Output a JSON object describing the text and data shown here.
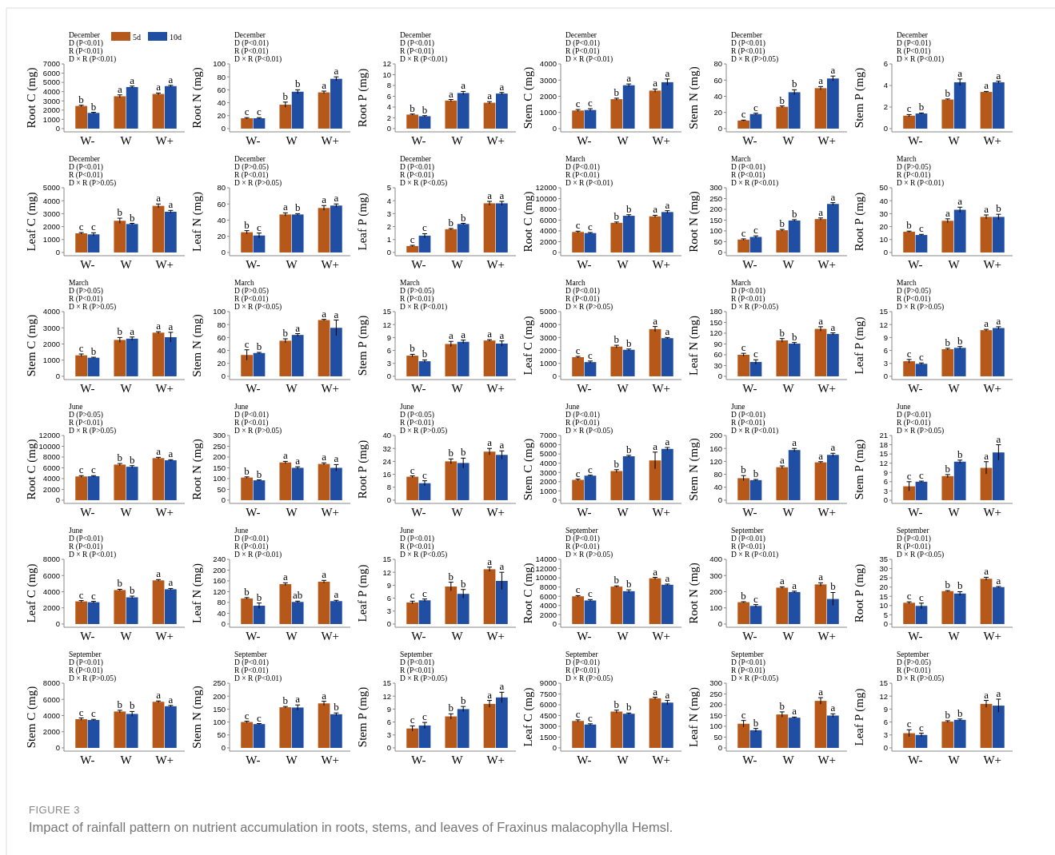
{
  "chart_data": [
    {
      "type": "bar",
      "ylabel": "Root C (mg)",
      "categories": [
        "W-",
        "W",
        "W+"
      ],
      "ylim": [
        -350,
        7000
      ],
      "yticks": [
        0,
        1000,
        2000,
        3000,
        4000,
        5000,
        6000,
        7000
      ],
      "legend": "top",
      "annotations": [
        "December",
        "D (P<0.01)",
        "R (P<0.01)",
        "D × R (P<0.01)"
      ],
      "series": [
        {
          "name": "5d",
          "color": "#b5581a",
          "values": [
            2450,
            3500,
            3750
          ],
          "errors": [
            80,
            150,
            100
          ],
          "value_labels": [
            "b",
            "a",
            "a"
          ]
        },
        {
          "name": "10d",
          "color": "#1f4ea3",
          "values": [
            1700,
            4500,
            4600
          ],
          "errors": [
            60,
            100,
            80
          ],
          "value_labels": [
            "b",
            "a",
            "a"
          ]
        }
      ]
    },
    {
      "type": "bar",
      "ylabel": "Root N (mg)",
      "categories": [
        "W-",
        "W",
        "W+"
      ],
      "ylim": [
        -5,
        100
      ],
      "yticks": [
        0,
        20,
        40,
        60,
        80,
        100
      ],
      "annotations": [
        "December",
        "D (P<0.01)",
        "R (P<0.01)",
        "D × R (P<0.01)"
      ],
      "series": [
        {
          "color": "#b5581a",
          "values": [
            16,
            37,
            56
          ],
          "errors": [
            1,
            4,
            2
          ],
          "value_labels": [
            "c",
            "b",
            "a"
          ]
        },
        {
          "color": "#1f4ea3",
          "values": [
            16,
            57,
            77
          ],
          "errors": [
            1,
            3,
            3
          ],
          "value_labels": [
            "c",
            "b",
            "a"
          ]
        }
      ]
    },
    {
      "type": "bar",
      "ylabel": "Root P (mg)",
      "categories": [
        "W-",
        "W",
        "W+"
      ],
      "ylim": [
        -0.6,
        12
      ],
      "yticks": [
        0,
        2,
        4,
        6,
        8,
        10,
        12
      ],
      "annotations": [
        "December",
        "D (P<0.01)",
        "R (P<0.01)",
        "D × R (P<0.01)"
      ],
      "series": [
        {
          "color": "#b5581a",
          "values": [
            2.6,
            5.2,
            4.8
          ],
          "errors": [
            0.1,
            0.2,
            0.2
          ],
          "value_labels": [
            "b",
            "a",
            "a"
          ]
        },
        {
          "color": "#1f4ea3",
          "values": [
            2.3,
            6.6,
            6.5
          ],
          "errors": [
            0.1,
            0.3,
            0.2
          ],
          "value_labels": [
            "b",
            "a",
            "a"
          ]
        }
      ]
    },
    {
      "type": "bar",
      "ylabel": "Stem C (mg)",
      "categories": [
        "W-",
        "W",
        "W+"
      ],
      "ylim": [
        -200,
        4000
      ],
      "yticks": [
        0,
        1000,
        2000,
        3000,
        4000
      ],
      "annotations": [
        "December",
        "D (P<0.01)",
        "R (P<0.01)",
        "D × R (P<0.01)"
      ],
      "series": [
        {
          "color": "#b5581a",
          "values": [
            1120,
            1820,
            2350
          ],
          "errors": [
            60,
            60,
            100
          ],
          "value_labels": [
            "c",
            "b",
            "a"
          ]
        },
        {
          "color": "#1f4ea3",
          "values": [
            1150,
            2680,
            2870
          ],
          "errors": [
            80,
            80,
            200
          ],
          "value_labels": [
            "c",
            "a",
            "a"
          ]
        }
      ]
    },
    {
      "type": "bar",
      "ylabel": "Stem N (mg)",
      "categories": [
        "W-",
        "W",
        "W+"
      ],
      "ylim": [
        -4,
        80
      ],
      "yticks": [
        0,
        20,
        40,
        60,
        80
      ],
      "annotations": [
        "December",
        "D (P<0.01)",
        "R (P<0.01)",
        "D × R (P>0.05)"
      ],
      "series": [
        {
          "color": "#b5581a",
          "values": [
            10,
            27,
            50
          ],
          "errors": [
            0.5,
            1,
            2
          ],
          "value_labels": [
            "c",
            "b",
            "a"
          ]
        },
        {
          "color": "#1f4ea3",
          "values": [
            18,
            45,
            62
          ],
          "errors": [
            1,
            3,
            3
          ],
          "value_labels": [
            "c",
            "b",
            "a"
          ]
        }
      ]
    },
    {
      "type": "bar",
      "ylabel": "Stem P (mg)",
      "categories": [
        "W-",
        "W",
        "W+"
      ],
      "ylim": [
        -0.3,
        6
      ],
      "yticks": [
        0,
        2,
        4,
        6
      ],
      "annotations": [
        "December",
        "D (P<0.01)",
        "R (P<0.01)",
        "D × R (P<0.01)"
      ],
      "series": [
        {
          "color": "#b5581a",
          "values": [
            1.2,
            2.7,
            3.4
          ],
          "errors": [
            0.1,
            0.05,
            0.05
          ],
          "value_labels": [
            "c",
            "b",
            "a"
          ]
        },
        {
          "color": "#1f4ea3",
          "values": [
            1.4,
            4.3,
            4.3
          ],
          "errors": [
            0.05,
            0.3,
            0.1
          ],
          "value_labels": [
            "b",
            "a",
            "a"
          ]
        }
      ]
    },
    {
      "type": "bar",
      "ylabel": "Leaf C (mg)",
      "categories": [
        "W-",
        "W",
        "W+"
      ],
      "ylim": [
        -250,
        5000
      ],
      "yticks": [
        0,
        1000,
        2000,
        3000,
        4000,
        5000
      ],
      "annotations": [
        "December",
        "D (P<0.01)",
        "R (P<0.01)",
        "D × R (P>0.05)"
      ],
      "series": [
        {
          "color": "#b5581a",
          "values": [
            1480,
            2450,
            3600
          ],
          "errors": [
            60,
            200,
            150
          ],
          "value_labels": [
            "c",
            "b",
            "a"
          ]
        },
        {
          "color": "#1f4ea3",
          "values": [
            1400,
            2200,
            3150
          ],
          "errors": [
            120,
            50,
            100
          ],
          "value_labels": [
            "c",
            "b",
            "a"
          ]
        }
      ]
    },
    {
      "type": "bar",
      "ylabel": "Leaf N (mg)",
      "categories": [
        "W-",
        "W",
        "W+"
      ],
      "ylim": [
        -4,
        80
      ],
      "yticks": [
        0,
        20,
        40,
        60,
        80
      ],
      "annotations": [
        "December",
        "D (P>0.05)",
        "R (P<0.01)",
        "D × R (P>0.05)"
      ],
      "series": [
        {
          "color": "#b5581a",
          "values": [
            25,
            47,
            55
          ],
          "errors": [
            2,
            2,
            3
          ],
          "value_labels": [
            "b",
            "a",
            "a"
          ]
        },
        {
          "color": "#1f4ea3",
          "values": [
            21,
            47,
            58
          ],
          "errors": [
            3,
            1,
            2
          ],
          "value_labels": [
            "c",
            "b",
            "a"
          ]
        }
      ]
    },
    {
      "type": "bar",
      "ylabel": "Leaf P (mg)",
      "categories": [
        "W-",
        "W",
        "W+"
      ],
      "ylim": [
        -0.25,
        5
      ],
      "yticks": [
        0,
        1,
        2,
        3,
        4,
        5
      ],
      "annotations": [
        "December",
        "D (P<0.01)",
        "R (P<0.01)",
        "D × R (P<0.05)"
      ],
      "series": [
        {
          "color": "#b5581a",
          "values": [
            0.5,
            1.8,
            3.8
          ],
          "errors": [
            0.05,
            0.05,
            0.15
          ],
          "value_labels": [
            "c",
            "b",
            "a"
          ]
        },
        {
          "color": "#1f4ea3",
          "values": [
            1.3,
            2.2,
            3.8
          ],
          "errors": [
            0.15,
            0.05,
            0.15
          ],
          "value_labels": [
            "c",
            "b",
            "a"
          ]
        }
      ]
    },
    {
      "type": "bar",
      "ylabel": "Root C (mg)",
      "categories": [
        "W-",
        "W",
        "W+"
      ],
      "ylim": [
        -600,
        12000
      ],
      "yticks": [
        0,
        2000,
        4000,
        6000,
        8000,
        10000,
        12000
      ],
      "annotations": [
        "March",
        "D (P<0.01)",
        "R (P<0.01)",
        "D × R (P<0.01)"
      ],
      "series": [
        {
          "color": "#b5581a",
          "values": [
            3800,
            5500,
            6700
          ],
          "errors": [
            150,
            150,
            200
          ],
          "value_labels": [
            "c",
            "b",
            "a"
          ]
        },
        {
          "color": "#1f4ea3",
          "values": [
            3600,
            6800,
            7500
          ],
          "errors": [
            100,
            200,
            250
          ],
          "value_labels": [
            "c",
            "b",
            "a"
          ]
        }
      ]
    },
    {
      "type": "bar",
      "ylabel": "Root N (mg)",
      "categories": [
        "W-",
        "W",
        "W+"
      ],
      "ylim": [
        -15,
        300
      ],
      "yticks": [
        0,
        50,
        100,
        150,
        200,
        250,
        300
      ],
      "annotations": [
        "March",
        "D (P<0.01)",
        "R (P<0.01)",
        "D × R (P<0.01)"
      ],
      "series": [
        {
          "color": "#b5581a",
          "values": [
            60,
            103,
            155
          ],
          "errors": [
            3,
            4,
            5
          ],
          "value_labels": [
            "c",
            "b",
            "a"
          ]
        },
        {
          "color": "#1f4ea3",
          "values": [
            72,
            148,
            225
          ],
          "errors": [
            5,
            4,
            6
          ],
          "value_labels": [
            "c",
            "b",
            "a"
          ]
        }
      ]
    },
    {
      "type": "bar",
      "ylabel": "Root P (mg)",
      "categories": [
        "W-",
        "W",
        "W+"
      ],
      "ylim": [
        -2.5,
        50
      ],
      "yticks": [
        0,
        10,
        20,
        30,
        40,
        50
      ],
      "annotations": [
        "March",
        "D (P>0.05)",
        "R (P<0.01)",
        "D × R (P<0.01)"
      ],
      "series": [
        {
          "color": "#b5581a",
          "values": [
            16,
            24.5,
            27.5
          ],
          "errors": [
            0.5,
            1.5,
            1.5
          ],
          "value_labels": [
            "b",
            "a",
            "a"
          ]
        },
        {
          "color": "#1f4ea3",
          "values": [
            13.5,
            33,
            27.5
          ],
          "errors": [
            0.5,
            2,
            2
          ],
          "value_labels": [
            "c",
            "a",
            "b"
          ]
        }
      ]
    },
    {
      "type": "bar",
      "ylabel": "Stem C (mg)",
      "categories": [
        "W-",
        "W",
        "W+"
      ],
      "ylim": [
        -200,
        4000
      ],
      "yticks": [
        0,
        1000,
        2000,
        3000,
        4000
      ],
      "annotations": [
        "March",
        "D (P>0.05)",
        "R (P<0.01)",
        "D × R (P>0.05)"
      ],
      "series": [
        {
          "color": "#b5581a",
          "values": [
            1300,
            2250,
            2700
          ],
          "errors": [
            80,
            150,
            60
          ],
          "value_labels": [
            "c",
            "b",
            "a"
          ]
        },
        {
          "color": "#1f4ea3",
          "values": [
            1150,
            2330,
            2420
          ],
          "errors": [
            30,
            100,
            300
          ],
          "value_labels": [
            "b",
            "a",
            "a"
          ]
        }
      ]
    },
    {
      "type": "bar",
      "ylabel": "Stem N (mg)",
      "categories": [
        "W-",
        "W",
        "W+"
      ],
      "ylim": [
        -5,
        100
      ],
      "yticks": [
        0,
        20,
        40,
        60,
        80,
        100
      ],
      "annotations": [
        "March",
        "D (P>0.05)",
        "R (P<0.01)",
        "D × R (P<0.05)"
      ],
      "series": [
        {
          "color": "#b5581a",
          "values": [
            33,
            55,
            87
          ],
          "errors": [
            8,
            3,
            1
          ],
          "value_labels": [
            "c",
            "b",
            "a"
          ]
        },
        {
          "color": "#1f4ea3",
          "values": [
            36,
            64,
            75
          ],
          "errors": [
            1,
            2,
            12
          ],
          "value_labels": [
            "b",
            "a",
            "a"
          ]
        }
      ]
    },
    {
      "type": "bar",
      "ylabel": "Stem P (mg)",
      "categories": [
        "W-",
        "W",
        "W+"
      ],
      "ylim": [
        -0.75,
        15
      ],
      "yticks": [
        0,
        3,
        6,
        9,
        12,
        15
      ],
      "annotations": [
        "March",
        "D (P>0.05)",
        "R (P<0.01)",
        "D × R (P<0.01)"
      ],
      "series": [
        {
          "color": "#b5581a",
          "values": [
            4.8,
            7.5,
            8.3
          ],
          "errors": [
            0.3,
            0.6,
            0.2
          ],
          "value_labels": [
            "b",
            "a",
            "a"
          ]
        },
        {
          "color": "#1f4ea3",
          "values": [
            3.5,
            8.0,
            7.6
          ],
          "errors": [
            0.3,
            0.4,
            0.6
          ],
          "value_labels": [
            "b",
            "a",
            "a"
          ]
        }
      ]
    },
    {
      "type": "bar",
      "ylabel": "Leaf C (mg)",
      "categories": [
        "W-",
        "W",
        "W+"
      ],
      "ylim": [
        -250,
        5000
      ],
      "yticks": [
        0,
        1000,
        2000,
        3000,
        4000,
        5000
      ],
      "annotations": [
        "March",
        "D (P<0.01)",
        "R (P<0.01)",
        "D × R (P>0.05)"
      ],
      "series": [
        {
          "color": "#b5581a",
          "values": [
            1480,
            2300,
            3650
          ],
          "errors": [
            60,
            100,
            200
          ],
          "value_labels": [
            "c",
            "b",
            "a"
          ]
        },
        {
          "color": "#1f4ea3",
          "values": [
            1100,
            2050,
            2950
          ],
          "errors": [
            80,
            60,
            50
          ],
          "value_labels": [
            "c",
            "b",
            "a"
          ]
        }
      ]
    },
    {
      "type": "bar",
      "ylabel": "Leaf N (mg)",
      "categories": [
        "W-",
        "W",
        "W+"
      ],
      "ylim": [
        -9,
        180
      ],
      "yticks": [
        0,
        30,
        60,
        90,
        120,
        150,
        180
      ],
      "annotations": [
        "March",
        "D (P<0.01)",
        "R (P<0.01)",
        "D × R (P>0.05)"
      ],
      "series": [
        {
          "color": "#b5581a",
          "values": [
            60,
            100,
            132
          ],
          "errors": [
            4,
            5,
            6
          ],
          "value_labels": [
            "c",
            "b",
            "a"
          ]
        },
        {
          "color": "#1f4ea3",
          "values": [
            40,
            91,
            118
          ],
          "errors": [
            6,
            3,
            3
          ],
          "value_labels": [
            "c",
            "b",
            "a"
          ]
        }
      ]
    },
    {
      "type": "bar",
      "ylabel": "Leaf P (mg)",
      "categories": [
        "W-",
        "W",
        "W+"
      ],
      "ylim": [
        -0.75,
        15
      ],
      "yticks": [
        0,
        3,
        6,
        9,
        12,
        15
      ],
      "annotations": [
        "March",
        "D (P>0.05)",
        "R (P<0.01)",
        "D × R (P>0.05)"
      ],
      "series": [
        {
          "color": "#b5581a",
          "values": [
            3.5,
            6.3,
            10.7
          ],
          "errors": [
            0.4,
            0.2,
            0.2
          ],
          "value_labels": [
            "c",
            "b",
            "a"
          ]
        },
        {
          "color": "#1f4ea3",
          "values": [
            2.9,
            6.6,
            11.2
          ],
          "errors": [
            0.2,
            0.3,
            0.3
          ],
          "value_labels": [
            "c",
            "b",
            "a"
          ]
        }
      ]
    },
    {
      "type": "bar",
      "ylabel": "Root C (mg)",
      "categories": [
        "W-",
        "W",
        "W+"
      ],
      "ylim": [
        -600,
        12000
      ],
      "yticks": [
        0,
        2000,
        4000,
        6000,
        8000,
        10000,
        12000
      ],
      "annotations": [
        "June",
        "D (P>0.05)",
        "R (P<0.01)",
        "D × R (P>0.05)"
      ],
      "series": [
        {
          "color": "#b5581a",
          "values": [
            4400,
            6600,
            7800
          ],
          "errors": [
            150,
            200,
            150
          ],
          "value_labels": [
            "c",
            "b",
            "a"
          ]
        },
        {
          "color": "#1f4ea3",
          "values": [
            4450,
            6200,
            7400
          ],
          "errors": [
            100,
            200,
            100
          ],
          "value_labels": [
            "c",
            "b",
            "a"
          ]
        }
      ]
    },
    {
      "type": "bar",
      "ylabel": "Root N (mg)",
      "categories": [
        "W-",
        "W",
        "W+"
      ],
      "ylim": [
        -15,
        300
      ],
      "yticks": [
        0,
        50,
        100,
        150,
        200,
        250,
        300
      ],
      "annotations": [
        "June",
        "D (P<0.01)",
        "R (P<0.01)",
        "D × R (P>0.05)"
      ],
      "series": [
        {
          "color": "#b5581a",
          "values": [
            105,
            175,
            168
          ],
          "errors": [
            3,
            5,
            5
          ],
          "value_labels": [
            "b",
            "a",
            "a"
          ]
        },
        {
          "color": "#1f4ea3",
          "values": [
            92,
            150,
            150
          ],
          "errors": [
            2,
            5,
            15
          ],
          "value_labels": [
            "b",
            "a",
            "a"
          ]
        }
      ]
    },
    {
      "type": "bar",
      "ylabel": "Root P (mg)",
      "categories": [
        "W-",
        "W",
        "W+"
      ],
      "ylim": [
        -2,
        40
      ],
      "yticks": [
        0,
        8,
        16,
        24,
        32,
        40
      ],
      "annotations": [
        "June",
        "D (P<0.05)",
        "R (P<0.01)",
        "D × R (P>0.05)"
      ],
      "series": [
        {
          "color": "#b5581a",
          "values": [
            14.5,
            24,
            30
          ],
          "errors": [
            0.5,
            1.5,
            2
          ],
          "value_labels": [
            "c",
            "b",
            "a"
          ]
        },
        {
          "color": "#1f4ea3",
          "values": [
            10.5,
            23,
            28
          ],
          "errors": [
            1.5,
            3,
            2.5
          ],
          "value_labels": [
            "c",
            "b",
            "a"
          ]
        }
      ]
    },
    {
      "type": "bar",
      "ylabel": "Stem C (mg)",
      "categories": [
        "W-",
        "W",
        "W+"
      ],
      "ylim": [
        -350,
        7000
      ],
      "yticks": [
        0,
        1000,
        2000,
        3000,
        4000,
        5000,
        6000,
        7000
      ],
      "annotations": [
        "June",
        "D (P<0.01)",
        "R (P<0.01)",
        "D × R (P<0.05)"
      ],
      "series": [
        {
          "color": "#b5581a",
          "values": [
            2200,
            3150,
            4300
          ],
          "errors": [
            80,
            150,
            900
          ],
          "value_labels": [
            "c",
            "b",
            "a"
          ]
        },
        {
          "color": "#1f4ea3",
          "values": [
            2650,
            4750,
            5550
          ],
          "errors": [
            50,
            100,
            150
          ],
          "value_labels": [
            "c",
            "b",
            "a"
          ]
        }
      ]
    },
    {
      "type": "bar",
      "ylabel": "Stem N (mg)",
      "categories": [
        "W-",
        "W",
        "W+"
      ],
      "ylim": [
        -10,
        200
      ],
      "yticks": [
        0,
        40,
        80,
        120,
        160,
        200
      ],
      "annotations": [
        "June",
        "D (P<0.01)",
        "R (P<0.01)",
        "D × R (P<0.01)"
      ],
      "series": [
        {
          "color": "#b5581a",
          "values": [
            68,
            102,
            117
          ],
          "errors": [
            8,
            4,
            2
          ],
          "value_labels": [
            "b",
            "a",
            "a"
          ]
        },
        {
          "color": "#1f4ea3",
          "values": [
            62,
            155,
            140
          ],
          "errors": [
            2,
            5,
            5
          ],
          "value_labels": [
            "b",
            "a",
            "a"
          ]
        }
      ]
    },
    {
      "type": "bar",
      "ylabel": "Stem P (mg)",
      "categories": [
        "W-",
        "W",
        "W+"
      ],
      "ylim": [
        -1.05,
        21
      ],
      "yticks": [
        0,
        3,
        6,
        9,
        12,
        15,
        18,
        21
      ],
      "annotations": [
        "June",
        "D (P<0.01)",
        "R (P<0.01)",
        "D × R (P>0.05)"
      ],
      "series": [
        {
          "color": "#b5581a",
          "values": [
            4.5,
            7.8,
            10.5
          ],
          "errors": [
            1.5,
            0.5,
            2
          ],
          "value_labels": [
            "c",
            "b",
            "a"
          ]
        },
        {
          "color": "#1f4ea3",
          "values": [
            6.0,
            12.5,
            15.5
          ],
          "errors": [
            0.2,
            0.5,
            2.5
          ],
          "value_labels": [
            "c",
            "b",
            "a"
          ]
        }
      ]
    },
    {
      "type": "bar",
      "ylabel": "Leaf C (mg)",
      "categories": [
        "W-",
        "W",
        "W+"
      ],
      "ylim": [
        -400,
        8000
      ],
      "yticks": [
        0,
        2000,
        4000,
        6000,
        8000
      ],
      "annotations": [
        "June",
        "D (P<0.01)",
        "R (P<0.01)",
        "D × R (P<0.01)"
      ],
      "series": [
        {
          "color": "#b5581a",
          "values": [
            2800,
            4200,
            5400
          ],
          "errors": [
            100,
            100,
            100
          ],
          "value_labels": [
            "c",
            "b",
            "a"
          ]
        },
        {
          "color": "#1f4ea3",
          "values": [
            2700,
            3300,
            4300
          ],
          "errors": [
            100,
            150,
            100
          ],
          "value_labels": [
            "c",
            "b",
            "a"
          ]
        }
      ]
    },
    {
      "type": "bar",
      "ylabel": "Leaf N (mg)",
      "categories": [
        "W-",
        "W",
        "W+"
      ],
      "ylim": [
        -12,
        240
      ],
      "yticks": [
        0,
        40,
        80,
        120,
        160,
        200,
        240
      ],
      "annotations": [
        "June",
        "D (P<0.01)",
        "R (P<0.01)",
        "D × R (P<0.01)"
      ],
      "series": [
        {
          "color": "#b5581a",
          "values": [
            95,
            148,
            157
          ],
          "errors": [
            3,
            5,
            5
          ],
          "value_labels": [
            "b",
            "a",
            "a"
          ]
        },
        {
          "color": "#1f4ea3",
          "values": [
            68,
            82,
            85
          ],
          "errors": [
            10,
            3,
            3
          ],
          "value_labels": [
            "b",
            "ab",
            "a"
          ]
        }
      ]
    },
    {
      "type": "bar",
      "ylabel": "Leaf P (mg)",
      "categories": [
        "W-",
        "W",
        "W+"
      ],
      "ylim": [
        -0.75,
        15
      ],
      "yticks": [
        0,
        3,
        6,
        9,
        12,
        15
      ],
      "annotations": [
        "June",
        "D (P<0.01)",
        "R (P<0.01)",
        "D × R (P<0.05)"
      ],
      "series": [
        {
          "color": "#b5581a",
          "values": [
            5.0,
            8.7,
            12.7
          ],
          "errors": [
            0.3,
            1,
            0.5
          ],
          "value_labels": [
            "c",
            "b",
            "a"
          ]
        },
        {
          "color": "#1f4ea3",
          "values": [
            5.5,
            7.0,
            10.0
          ],
          "errors": [
            0.3,
            1,
            2
          ],
          "value_labels": [
            "c",
            "b",
            "a"
          ]
        }
      ]
    },
    {
      "type": "bar",
      "ylabel": "Root C (mg)",
      "categories": [
        "W-",
        "W",
        "W+"
      ],
      "ylim": [
        -700,
        14000
      ],
      "yticks": [
        0,
        2000,
        4000,
        6000,
        8000,
        10000,
        12000,
        14000
      ],
      "annotations": [
        "September",
        "D (P<0.01)",
        "R (P<0.01)",
        "D × R (P>0.05)"
      ],
      "series": [
        {
          "color": "#b5581a",
          "values": [
            6000,
            8100,
            9900
          ],
          "errors": [
            150,
            150,
            200
          ],
          "value_labels": [
            "c",
            "b",
            "a"
          ]
        },
        {
          "color": "#1f4ea3",
          "values": [
            5100,
            7100,
            8500
          ],
          "errors": [
            200,
            300,
            150
          ],
          "value_labels": [
            "c",
            "b",
            "a"
          ]
        }
      ]
    },
    {
      "type": "bar",
      "ylabel": "Root N (mg)",
      "categories": [
        "W-",
        "W",
        "W+"
      ],
      "ylim": [
        -20,
        400
      ],
      "yticks": [
        0,
        100,
        200,
        300,
        400
      ],
      "annotations": [
        "September",
        "D (P<0.01)",
        "R (P<0.01)",
        "D × R (P<0.01)"
      ],
      "series": [
        {
          "color": "#b5581a",
          "values": [
            135,
            225,
            245
          ],
          "errors": [
            3,
            5,
            10
          ],
          "value_labels": [
            "b",
            "a",
            "a"
          ]
        },
        {
          "color": "#1f4ea3",
          "values": [
            112,
            198,
            155
          ],
          "errors": [
            8,
            5,
            40
          ],
          "value_labels": [
            "c",
            "a",
            "b"
          ]
        }
      ]
    },
    {
      "type": "bar",
      "ylabel": "Root P (mg)",
      "categories": [
        "W-",
        "W",
        "W+"
      ],
      "ylim": [
        -1.75,
        35
      ],
      "yticks": [
        0,
        5,
        10,
        15,
        20,
        25,
        30,
        35
      ],
      "annotations": [
        "September",
        "D (P<0.01)",
        "R (P<0.01)",
        "D × R (P<0.05)"
      ],
      "series": [
        {
          "color": "#b5581a",
          "values": [
            11.5,
            17.8,
            24.5
          ],
          "errors": [
            0.5,
            0.3,
            0.8
          ],
          "value_labels": [
            "c",
            "b",
            "a"
          ]
        },
        {
          "color": "#1f4ea3",
          "values": [
            9.8,
            16.5,
            20
          ],
          "errors": [
            1.5,
            1,
            0.3
          ],
          "value_labels": [
            "c",
            "b",
            "a"
          ]
        }
      ]
    },
    {
      "type": "bar",
      "ylabel": "Stem C (mg)",
      "categories": [
        "W-",
        "W",
        "W+"
      ],
      "ylim": [
        -400,
        8000
      ],
      "yticks": [
        0,
        2000,
        4000,
        6000,
        8000
      ],
      "annotations": [
        "September",
        "D (P<0.01)",
        "R (P<0.01)",
        "D × R (P>0.05)"
      ],
      "series": [
        {
          "color": "#b5581a",
          "values": [
            3550,
            4500,
            5700
          ],
          "errors": [
            150,
            150,
            100
          ],
          "value_labels": [
            "c",
            "b",
            "a"
          ]
        },
        {
          "color": "#1f4ea3",
          "values": [
            3450,
            4200,
            5150
          ],
          "errors": [
            80,
            300,
            100
          ],
          "value_labels": [
            "c",
            "b",
            "a"
          ]
        }
      ]
    },
    {
      "type": "bar",
      "ylabel": "Stem N (mg)",
      "categories": [
        "W-",
        "W",
        "W+"
      ],
      "ylim": [
        -12.5,
        250
      ],
      "yticks": [
        0,
        50,
        100,
        150,
        200,
        250
      ],
      "annotations": [
        "September",
        "D (P<0.01)",
        "R (P<0.01)",
        "D × R (P<0.01)"
      ],
      "series": [
        {
          "color": "#b5581a",
          "values": [
            100,
            157,
            172
          ],
          "errors": [
            3,
            3,
            8
          ],
          "value_labels": [
            "c",
            "b",
            "a"
          ]
        },
        {
          "color": "#1f4ea3",
          "values": [
            92,
            156,
            130
          ],
          "errors": [
            2,
            10,
            5
          ],
          "value_labels": [
            "c",
            "a",
            "b"
          ]
        }
      ]
    },
    {
      "type": "bar",
      "ylabel": "Stem P (mg)",
      "categories": [
        "W-",
        "W",
        "W+"
      ],
      "ylim": [
        -0.75,
        15
      ],
      "yticks": [
        0,
        3,
        6,
        9,
        12,
        15
      ],
      "annotations": [
        "September",
        "D (P<0.01)",
        "R (P<0.01)",
        "D × R (P>0.05)"
      ],
      "series": [
        {
          "color": "#b5581a",
          "values": [
            4.5,
            7.3,
            10.2
          ],
          "errors": [
            0.6,
            0.6,
            0.8
          ],
          "value_labels": [
            "c",
            "b",
            "a"
          ]
        },
        {
          "color": "#1f4ea3",
          "values": [
            5.2,
            9.0,
            11.7
          ],
          "errors": [
            0.7,
            0.6,
            1.2
          ],
          "value_labels": [
            "c",
            "b",
            "a"
          ]
        }
      ]
    },
    {
      "type": "bar",
      "ylabel": "Leaf C (mg)",
      "categories": [
        "W-",
        "W",
        "W+"
      ],
      "ylim": [
        -450,
        9000
      ],
      "yticks": [
        0,
        1500,
        3000,
        4500,
        6000,
        7500,
        9000
      ],
      "annotations": [
        "September",
        "D (P<0.01)",
        "R (P<0.01)",
        "D × R (P>0.05)"
      ],
      "series": [
        {
          "color": "#b5581a",
          "values": [
            3750,
            5050,
            6900
          ],
          "errors": [
            150,
            200,
            150
          ],
          "value_labels": [
            "c",
            "b",
            "a"
          ]
        },
        {
          "color": "#1f4ea3",
          "values": [
            3250,
            4750,
            6300
          ],
          "errors": [
            100,
            100,
            300
          ],
          "value_labels": [
            "c",
            "b",
            "a"
          ]
        }
      ]
    },
    {
      "type": "bar",
      "ylabel": "Leaf N (mg)",
      "categories": [
        "W-",
        "W",
        "W+"
      ],
      "ylim": [
        -15,
        300
      ],
      "yticks": [
        0,
        50,
        100,
        150,
        200,
        250,
        300
      ],
      "annotations": [
        "September",
        "D (P<0.01)",
        "R (P<0.01)",
        "D × R (P<0.05)"
      ],
      "series": [
        {
          "color": "#b5581a",
          "values": [
            112,
            155,
            218
          ],
          "errors": [
            15,
            12,
            15
          ],
          "value_labels": [
            "c",
            "b",
            "a"
          ]
        },
        {
          "color": "#1f4ea3",
          "values": [
            82,
            140,
            150
          ],
          "errors": [
            8,
            3,
            8
          ],
          "value_labels": [
            "b",
            "a",
            "a"
          ]
        }
      ]
    },
    {
      "type": "bar",
      "ylabel": "Leaf P (mg)",
      "categories": [
        "W-",
        "W",
        "W+"
      ],
      "ylim": [
        -0.75,
        15
      ],
      "yticks": [
        0,
        3,
        6,
        9,
        12,
        15
      ],
      "annotations": [
        "September",
        "D (P>0.05)",
        "R (P<0.01)",
        "D × R (P>0.05)"
      ],
      "series": [
        {
          "color": "#b5581a",
          "values": [
            3.4,
            6.1,
            10.2
          ],
          "errors": [
            0.8,
            0.2,
            0.8
          ],
          "value_labels": [
            "c",
            "b",
            "a"
          ]
        },
        {
          "color": "#1f4ea3",
          "values": [
            3.0,
            6.5,
            9.8
          ],
          "errors": [
            0.4,
            0.2,
            1.5
          ],
          "value_labels": [
            "c",
            "b",
            "a"
          ]
        }
      ]
    },
    {
      "type": "other",
      "title": "FIGURE 3",
      "subtitle": "Impact of rainfall pattern on nutrient accumulation in roots, stems, and leaves of Fraxinus malacophylla Hemsl."
    }
  ]
}
